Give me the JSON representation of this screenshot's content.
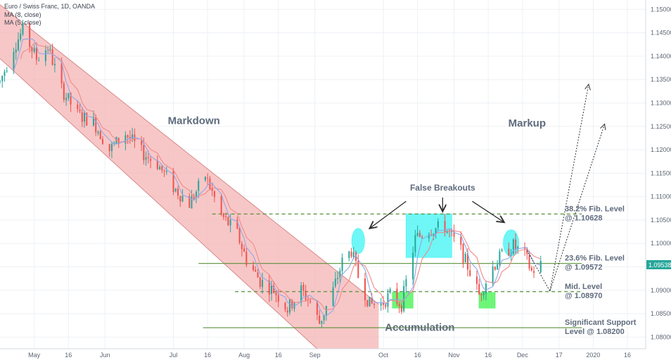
{
  "chart_data": {
    "type": "candlestick",
    "symbol_title": "Euro / Swiss Franc, 1D, OANDA",
    "indicators": [
      {
        "name": "MA (8, close)",
        "color": "#f08a8a"
      },
      {
        "name": "MA (5, close)",
        "color": "#8fa8e6"
      }
    ],
    "price_axis": {
      "ylim": [
        1.0775,
        1.152
      ],
      "ticks": [
        "1.15000",
        "1.14500",
        "1.14000",
        "1.13500",
        "1.13000",
        "1.12500",
        "1.12000",
        "1.11500",
        "1.11000",
        "1.10500",
        "1.10000",
        "1.09500",
        "1.09000",
        "1.08500",
        "1.08000"
      ],
      "current_price": "1.09538",
      "current_price_color": "#26a69a"
    },
    "time_axis": {
      "start": "2019-04-16",
      "end": "2020-01-24",
      "labels": [
        {
          "text": "May",
          "date": "2019-05-01"
        },
        {
          "text": "16",
          "date": "2019-05-16"
        },
        {
          "text": "Jun",
          "date": "2019-06-01"
        },
        {
          "text": "Jul",
          "date": "2019-07-01"
        },
        {
          "text": "16",
          "date": "2019-07-16"
        },
        {
          "text": "Aug",
          "date": "2019-08-01"
        },
        {
          "text": "16",
          "date": "2019-08-16"
        },
        {
          "text": "Sep",
          "date": "2019-09-01"
        },
        {
          "text": "Oct",
          "date": "2019-10-01"
        },
        {
          "text": "16",
          "date": "2019-10-16"
        },
        {
          "text": "Nov",
          "date": "2019-11-01"
        },
        {
          "text": "16",
          "date": "2019-11-16"
        },
        {
          "text": "Dec",
          "date": "2019-12-01"
        },
        {
          "text": "17",
          "date": "2019-12-17"
        },
        {
          "text": "2020",
          "date": "2020-01-01"
        },
        {
          "text": "16",
          "date": "2020-01-16"
        }
      ]
    },
    "colors": {
      "up": "#26a69a",
      "down": "#ef5350",
      "channel_fill": "#f4b4b4",
      "channel_edge": "#d98a8a",
      "box_cyan": "#5ff5f5",
      "box_green": "#5ff56a",
      "level_line": "#5a8f3a"
    },
    "price_path": [
      [
        "2019-04-16",
        1.1345
      ],
      [
        "2019-04-22",
        1.142
      ],
      [
        "2019-04-26",
        1.1455
      ],
      [
        "2019-05-02",
        1.1395
      ],
      [
        "2019-05-07",
        1.142
      ],
      [
        "2019-05-13",
        1.133
      ],
      [
        "2019-05-20",
        1.1275
      ],
      [
        "2019-05-27",
        1.126
      ],
      [
        "2019-06-03",
        1.12
      ],
      [
        "2019-06-10",
        1.1235
      ],
      [
        "2019-06-17",
        1.1195
      ],
      [
        "2019-06-24",
        1.117
      ],
      [
        "2019-07-01",
        1.112
      ],
      [
        "2019-07-08",
        1.1085
      ],
      [
        "2019-07-15",
        1.1145
      ],
      [
        "2019-07-22",
        1.106
      ],
      [
        "2019-07-29",
        1.102
      ],
      [
        "2019-08-02",
        1.0965
      ],
      [
        "2019-08-08",
        1.092
      ],
      [
        "2019-08-14",
        1.09
      ],
      [
        "2019-08-20",
        1.086
      ],
      [
        "2019-08-26",
        1.09
      ],
      [
        "2019-08-30",
        1.0875
      ],
      [
        "2019-09-03",
        1.083
      ],
      [
        "2019-09-09",
        1.09
      ],
      [
        "2019-09-13",
        1.096
      ],
      [
        "2019-09-17",
        1.0985
      ],
      [
        "2019-09-20",
        1.093
      ],
      [
        "2019-09-25",
        1.087
      ],
      [
        "2019-09-30",
        1.087
      ],
      [
        "2019-10-04",
        1.089
      ],
      [
        "2019-10-09",
        1.087
      ],
      [
        "2019-10-15",
        1.101
      ],
      [
        "2019-10-21",
        1.103
      ],
      [
        "2019-10-28",
        1.1035
      ],
      [
        "2019-11-04",
        1.0985
      ],
      [
        "2019-11-08",
        1.094
      ],
      [
        "2019-11-12",
        1.089
      ],
      [
        "2019-11-18",
        1.095
      ],
      [
        "2019-11-22",
        1.0975
      ],
      [
        "2019-11-27",
        1.0995
      ],
      [
        "2019-12-02",
        1.0975
      ],
      [
        "2019-12-05",
        1.094
      ],
      [
        "2019-12-09",
        1.0955
      ]
    ],
    "levels": [
      {
        "label": "38.2% Fib. Level",
        "value_text": "@ 1.10628",
        "price": 1.10628,
        "style": "dashed",
        "from": "2019-07-18",
        "to": "2019-12-27"
      },
      {
        "label": "23.6% Fib. Level",
        "value_text": "@ 1.09572",
        "price": 1.09572,
        "style": "solid",
        "from": "2019-07-12",
        "to": "2019-12-27"
      },
      {
        "label": "Mid. Level",
        "value_text": "@ 1.08970",
        "price": 1.0897,
        "style": "dashed",
        "from": "2019-07-28",
        "to": "2019-12-27"
      },
      {
        "label": "Significant Support",
        "value_text": "Level @ 1.08200",
        "price": 1.082,
        "style": "solid",
        "from": "2019-07-14",
        "to": "2019-12-27"
      }
    ],
    "channel": {
      "upper": [
        [
          "2019-04-16",
          1.151
        ],
        [
          "2019-09-29",
          1.087
        ]
      ],
      "lower": [
        [
          "2019-04-16",
          1.1395
        ],
        [
          "2019-09-01",
          1.078
        ]
      ],
      "right_edge": "2019-09-29",
      "bottom": 1.0775
    },
    "zones": [
      {
        "kind": "cyan-box",
        "from": "2019-10-11",
        "to": "2019-10-31",
        "top": 1.1063,
        "bottom": 1.097
      },
      {
        "kind": "cyan-ellipse",
        "cx": "2019-09-20",
        "cy": 1.1005,
        "rx_days": 2.8,
        "ry_price": 0.0027
      },
      {
        "kind": "cyan-ellipse",
        "cx": "2019-11-26",
        "cy": 1.1001,
        "rx_days": 3.4,
        "ry_price": 0.0028
      },
      {
        "kind": "green-box",
        "from": "2019-10-05",
        "to": "2019-10-14",
        "top": 1.0895,
        "bottom": 1.0862
      },
      {
        "kind": "green-box",
        "from": "2019-11-12",
        "to": "2019-11-19",
        "top": 1.0895,
        "bottom": 1.0862
      }
    ],
    "annotations": [
      {
        "text": "Markdown",
        "date": "2019-07-10",
        "price": 1.1255,
        "class": "big"
      },
      {
        "text": "Markup",
        "date": "2019-12-03",
        "price": 1.125,
        "class": "big"
      },
      {
        "text": "Accumulation",
        "date": "2019-10-17",
        "price": 1.0813,
        "class": "big"
      },
      {
        "text": "False Breakouts",
        "date": "2019-10-27",
        "price": 1.1113,
        "class": "mid"
      }
    ],
    "arrows": [
      {
        "from": [
          "2019-10-11",
          1.109
        ],
        "to": [
          "2019-09-25",
          1.1032
        ]
      },
      {
        "from": [
          "2019-10-27",
          1.1098
        ],
        "to": [
          "2019-10-27",
          1.1068
        ]
      },
      {
        "from": [
          "2019-11-09",
          1.109
        ],
        "to": [
          "2019-11-23",
          1.1045
        ]
      }
    ],
    "projections": [
      {
        "points": [
          [
            "2019-12-03",
            1.0985
          ],
          [
            "2019-12-13",
            1.0898
          ],
          [
            "2019-12-30",
            1.134
          ]
        ]
      },
      {
        "points": [
          [
            "2019-12-13",
            1.0898
          ],
          [
            "2020-01-06",
            1.1255
          ]
        ]
      }
    ]
  }
}
